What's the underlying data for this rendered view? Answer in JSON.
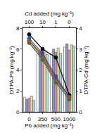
{
  "chart_data": {
    "type": "bar",
    "x_label": "Pb added (mg kg⁻¹)",
    "top_label": "Cd added (mg kg⁻¹)",
    "y_label": "DTPA-Pb (mg kg⁻¹)",
    "y2_label": "DTPA-Cd (mg kg⁻¹)",
    "categories": [
      "0",
      "350",
      "500",
      "1000"
    ],
    "top_categories": [
      "100",
      "10",
      "1",
      "0"
    ],
    "ylim": [
      0,
      8
    ],
    "yticks": [
      0,
      2,
      4,
      6,
      8
    ],
    "y2lim": [
      0,
      4
    ],
    "y2ticks": [
      0,
      1,
      2,
      3,
      4
    ],
    "series": [
      {
        "type": "bar",
        "color": "#ffffff",
        "values": [
          1.4,
          5.6,
          5.5,
          6.2
        ]
      },
      {
        "type": "bar",
        "color": "#7b9fd4",
        "values": [
          1.2,
          5.8,
          6.0,
          6.5
        ]
      },
      {
        "type": "bar",
        "color": "#e88fb0",
        "values": [
          1.3,
          5.3,
          5.7,
          5.9
        ]
      },
      {
        "type": "bar",
        "color": "#f0e58a",
        "values": [
          1.5,
          5.9,
          6.1,
          6.4
        ]
      },
      {
        "type": "bar",
        "color": "#a8dcea",
        "values": [
          1.1,
          5.5,
          5.6,
          6.3
        ]
      },
      {
        "type": "line",
        "axis": "y2",
        "color": "#000000",
        "marker": "triangle-open",
        "values": [
          3.7,
          3.0,
          2.6,
          0.8
        ]
      },
      {
        "type": "line",
        "axis": "y2",
        "color": "#d62020",
        "marker": "circle",
        "values": [
          3.4,
          2.7,
          1.6,
          0.7
        ]
      },
      {
        "type": "line",
        "axis": "y2",
        "color": "#1e7a3a",
        "marker": "circle",
        "values": [
          3.3,
          2.5,
          1.4,
          0.6
        ]
      },
      {
        "type": "line",
        "axis": "y2",
        "color": "#2a4fb0",
        "marker": "circle",
        "values": [
          3.5,
          2.8,
          1.7,
          0.7
        ]
      },
      {
        "type": "line",
        "axis": "y2",
        "color": "#8a5a2a",
        "marker": "circle",
        "values": [
          3.4,
          2.6,
          1.5,
          0.7
        ]
      }
    ]
  }
}
